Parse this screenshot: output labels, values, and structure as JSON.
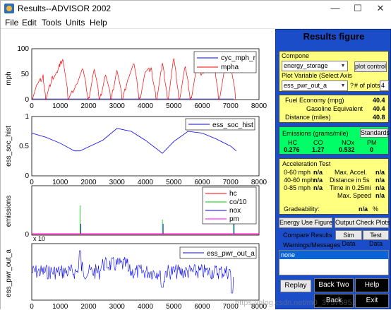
{
  "window": {
    "title": "Results--ADVISOR 2002",
    "minimize": "—",
    "maximize": "☐",
    "close": "✕"
  },
  "menu": [
    "File",
    "Edit",
    "Tools",
    "Units",
    "Help"
  ],
  "charts": {
    "chart1": {
      "ylabel": "mph",
      "yticks": [
        "100",
        "50",
        "0"
      ],
      "xticks": [
        "0",
        "1000",
        "2000",
        "3000",
        "4000",
        "5000",
        "6000",
        "7000",
        "8000"
      ],
      "legend": [
        "cyc_mph_r",
        "mpha"
      ]
    },
    "chart2": {
      "ylabel": "ess_soc_hist",
      "yticks": [
        "1",
        "0.5",
        "0"
      ],
      "xticks": [
        "0",
        "1000",
        "2000",
        "3000",
        "4000",
        "5000",
        "6000",
        "7000",
        "8000"
      ],
      "legend": [
        "ess_soc_hist"
      ]
    },
    "chart3": {
      "ylabel": "emissions",
      "yticks": [
        "0"
      ],
      "exponent": "x 10",
      "legend": [
        "hc",
        "co/10",
        "nox",
        "pm"
      ]
    },
    "chart4": {
      "ylabel": "ess_pwr_out_a",
      "xticks": [
        "0",
        "1000",
        "2000",
        "3000",
        "4000",
        "5000",
        "6000",
        "7000",
        "8000"
      ],
      "legend": [
        "ess_pwr_out_a"
      ]
    }
  },
  "chart_data": [
    {
      "type": "line",
      "ylabel": "mph",
      "xlim": [
        0,
        8000
      ],
      "ylim": [
        0,
        100
      ],
      "series": [
        {
          "name": "cyc_mph_r",
          "color": "#0000ff",
          "description_points": [
            [
              0,
              0
            ],
            [
              7200,
              0
            ]
          ]
        },
        {
          "name": "mpha",
          "color": "#ff0000",
          "x": [
            0,
            200,
            400,
            500,
            700,
            900,
            1000,
            1100,
            1300,
            1600,
            1800,
            2000,
            2200,
            2400,
            2600,
            2800,
            3000,
            3200,
            3400,
            3600,
            3800,
            4000,
            4200,
            4400,
            4600,
            4800,
            5000,
            5200,
            5400,
            5600,
            5800,
            6000,
            6200,
            6400,
            6600,
            6800,
            7000,
            7200
          ],
          "y": [
            0,
            30,
            45,
            0,
            40,
            55,
            70,
            80,
            0,
            35,
            60,
            0,
            60,
            0,
            50,
            0,
            60,
            0,
            45,
            70,
            0,
            55,
            60,
            0,
            70,
            0,
            80,
            0,
            65,
            0,
            60,
            50,
            75,
            80,
            0,
            60,
            70,
            0
          ]
        }
      ]
    },
    {
      "type": "line",
      "ylabel": "ess_soc_hist",
      "xlim": [
        0,
        8000
      ],
      "ylim": [
        0,
        1
      ],
      "series": [
        {
          "name": "ess_soc_hist",
          "color": "#0000ff",
          "x": [
            0,
            500,
            1000,
            1500,
            1700,
            2500,
            3000,
            3500,
            4000,
            4600,
            5000,
            5500,
            6000,
            6500,
            7000,
            7200
          ],
          "y": [
            0.72,
            0.65,
            0.55,
            0.42,
            0.42,
            0.6,
            0.8,
            0.75,
            0.6,
            0.38,
            0.58,
            0.75,
            0.72,
            0.62,
            0.5,
            0.42
          ]
        }
      ]
    },
    {
      "type": "line",
      "ylabel": "emissions",
      "series": [
        {
          "name": "hc",
          "color": "#ff0000"
        },
        {
          "name": "co/10",
          "color": "#00cc00",
          "spikes_x": [
            1700,
            4600,
            7100
          ]
        },
        {
          "name": "nox",
          "color": "#0000ff",
          "spikes_x": [
            1700,
            4600,
            7100
          ]
        },
        {
          "name": "pm",
          "color": "#ff00ff"
        }
      ]
    },
    {
      "type": "line",
      "ylabel": "ess_pwr_out_a",
      "xlim": [
        0,
        8000
      ],
      "series": [
        {
          "name": "ess_pwr_out_a",
          "color": "#0000ff"
        }
      ]
    }
  ],
  "panel": {
    "title": "Results figure",
    "component_label": "Compone",
    "component_value": "energy_storage",
    "plot_control": "plot control",
    "plot_variable_label": "Plot Variable (Select Axis",
    "plot_variable_value": "ess_pwr_out_a",
    "question_mark": "?",
    "num_plots_label": "# of plots",
    "num_plots_value": "4",
    "fuel_economy_label": "Fuel Economy (mpg)",
    "fuel_economy_value": "40.4",
    "gasoline_eq_label": "Gasoline Equivalent",
    "gasoline_eq_value": "40.4",
    "distance_label": "Distance (miles)",
    "distance_value": "40.8",
    "emissions_label": "Emissions (grams/mile)",
    "standards_button": "Standards",
    "emissions_cols": [
      "HC",
      "CO",
      "NOx",
      "PM"
    ],
    "emissions_vals": [
      "0.276",
      "1.27",
      "0.532",
      "0"
    ],
    "accel_title": "Acceleration Test",
    "accel_rows": [
      {
        "label": "0-60 mph",
        "value": "n/a",
        "label2": "Max. Accel.",
        "value2": "n/a"
      },
      {
        "label": "40-60 mph",
        "value": "n/a",
        "label2": "Distance in 5s",
        "value2": "n/a"
      },
      {
        "label": "0-85 mph",
        "value": "n/a",
        "label2": "Time in 0.25mi",
        "value2": "n/a"
      },
      {
        "label": "",
        "value": "",
        "label2": "Max. Speed",
        "value2": "n/a"
      }
    ],
    "gradeability_label": "Gradeability:",
    "gradeability_value": "n/a",
    "gradeability_unit": "%",
    "energy_use_button": "Energy Use Figure",
    "output_check_button": "Output Check Plots",
    "compare_results_label": "Compare Results",
    "sim_data_button": "Sim Data",
    "test_data_button": "Test Data",
    "warnings_label": "Warnings/Messages",
    "warnings_value": "none",
    "replay_button": "Replay",
    "back_two_button": "Back Two",
    "help_button": "Help",
    "back_button": "Back",
    "exit_button": "Exit"
  },
  "watermark": "https://blog.csdn.net/m0_37576951"
}
